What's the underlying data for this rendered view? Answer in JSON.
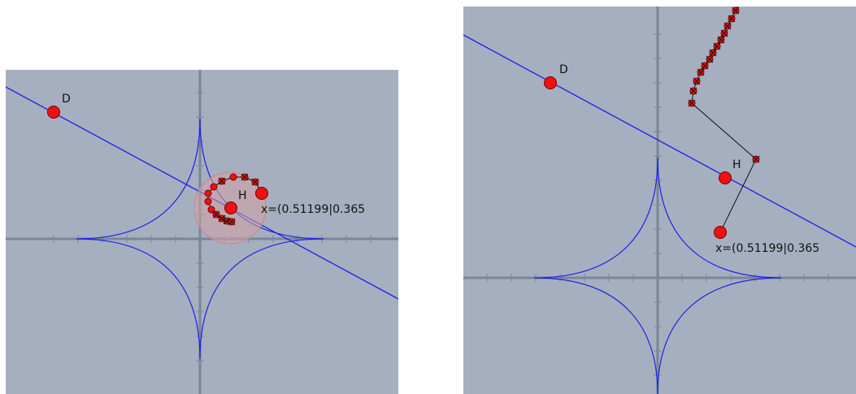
{
  "colors": {
    "background": "#a6afbf",
    "axis": "#7c8596",
    "curve": "#1a22e6",
    "line": "#1a22e6",
    "point_fill": "#ee1111",
    "point_stroke": "#7a0000",
    "trace": "#111111",
    "highlight_fill": "#d4a0a6"
  },
  "icons": {
    "point": "red-circle",
    "trace_point": "small-red-circle-with-cross"
  },
  "panels": [
    {
      "point_d_label": "D",
      "point_h_label": "H",
      "coordinate_text": "x=(0.51199|0.365"
    },
    {
      "point_d_label": "D",
      "point_h_label": "H",
      "coordinate_text": "x=(0.51199|0.365"
    }
  ]
}
